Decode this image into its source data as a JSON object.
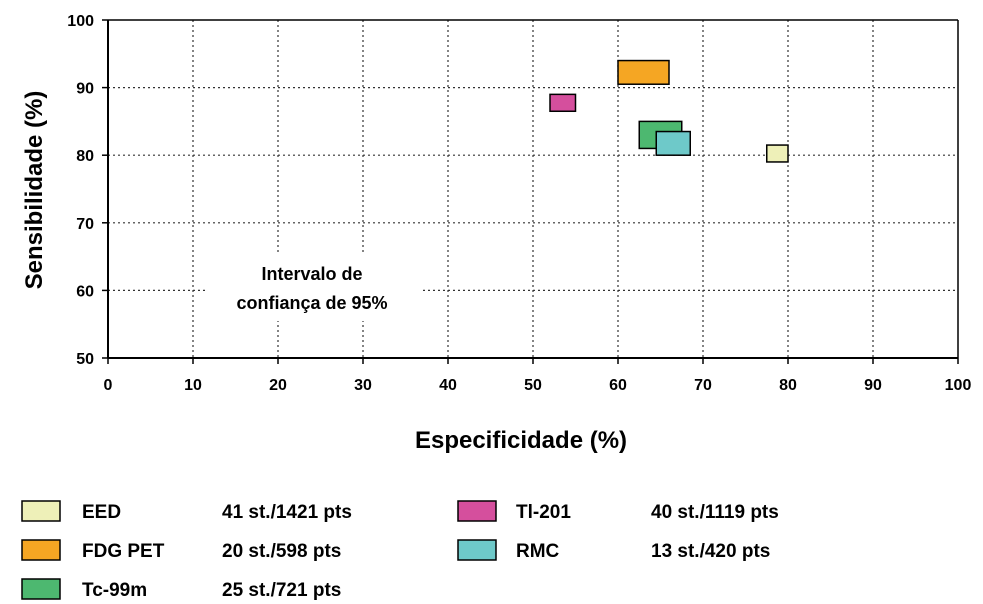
{
  "chart_data": {
    "type": "scatter",
    "xlabel": "Especificidade  (%)",
    "ylabel": "Sensibilidade  (%)",
    "xlim": [
      0,
      100
    ],
    "ylim": [
      50,
      100
    ],
    "xticks": [
      "0",
      "10",
      "20",
      "30",
      "40",
      "50",
      "60",
      "70",
      "80",
      "90",
      "100"
    ],
    "yticks": [
      "50",
      "60",
      "70",
      "80",
      "90",
      "100"
    ],
    "grid": true,
    "annotation": [
      "Intervalo de",
      "confiança de 95%"
    ],
    "series": [
      {
        "name": "EED",
        "info": "41 st./1421 pts",
        "color": "#eef0b8",
        "x": [
          77.5,
          80
        ],
        "y": [
          79,
          81.5
        ]
      },
      {
        "name": "FDG PET",
        "info": "20 st./598 pts",
        "color": "#f5a623",
        "x": [
          60,
          66
        ],
        "y": [
          90.5,
          94
        ]
      },
      {
        "name": "Tc-99m",
        "info": "25 st./721 pts",
        "color": "#4db870",
        "x": [
          62.5,
          67.5
        ],
        "y": [
          81,
          85
        ]
      },
      {
        "name": "Tl-201",
        "info": "40 st./1119 pts",
        "color": "#d54f9d",
        "x": [
          52,
          55
        ],
        "y": [
          86.5,
          89
        ]
      },
      {
        "name": "RMC",
        "info": "13 st./420 pts",
        "color": "#6ec9c9",
        "x": [
          64.5,
          68.5
        ],
        "y": [
          80,
          83.5
        ]
      }
    ]
  }
}
